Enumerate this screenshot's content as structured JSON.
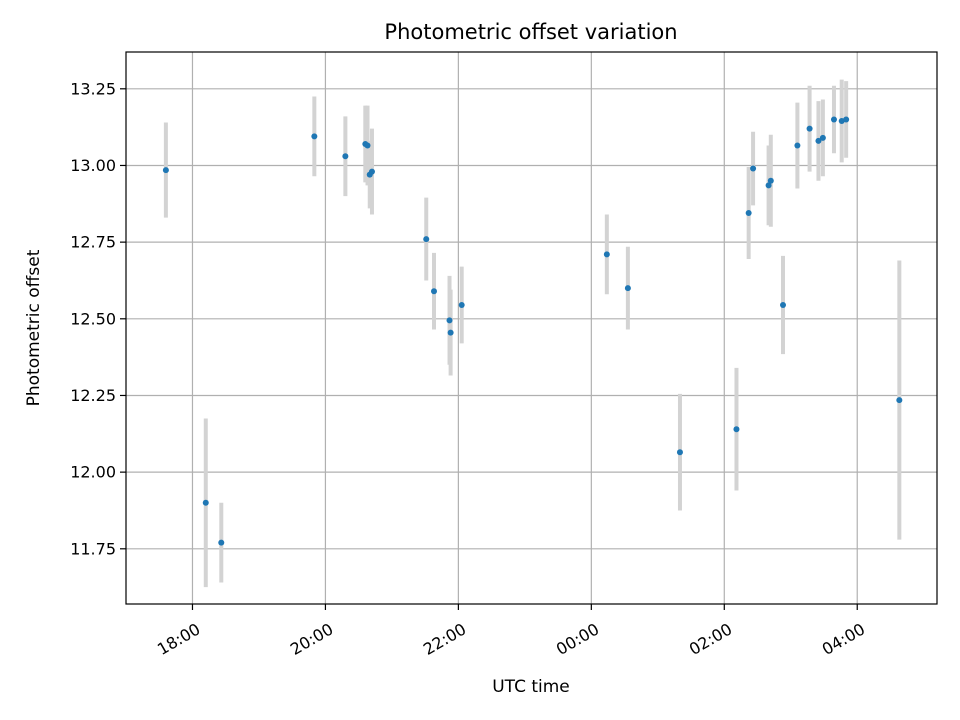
{
  "chart_data": {
    "type": "scatter",
    "title": "Photometric offset variation",
    "xlabel": "UTC time",
    "ylabel": "Photometric offset",
    "x_axis": "time",
    "xlim": [
      "17:00",
      "05:12"
    ],
    "ylim": [
      11.57,
      13.37
    ],
    "x_ticks": [
      "18:00",
      "20:00",
      "22:00",
      "00:00",
      "02:00",
      "04:00"
    ],
    "y_ticks": [
      "11.75",
      "12.00",
      "12.25",
      "12.50",
      "12.75",
      "13.00",
      "13.25"
    ],
    "grid": true,
    "colors": {
      "point": "#1f77b4",
      "errorbar": "#d3d3d3"
    },
    "points": [
      {
        "t": "17:36",
        "y": 12.985,
        "err": 0.155
      },
      {
        "t": "18:12",
        "y": 11.9,
        "err": 0.275
      },
      {
        "t": "18:26",
        "y": 11.77,
        "err": 0.13
      },
      {
        "t": "19:50",
        "y": 13.095,
        "err": 0.13
      },
      {
        "t": "20:18",
        "y": 13.03,
        "err": 0.13
      },
      {
        "t": "20:36",
        "y": 13.07,
        "err": 0.125
      },
      {
        "t": "20:38",
        "y": 13.065,
        "err": 0.13
      },
      {
        "t": "20:40",
        "y": 12.97,
        "err": 0.11
      },
      {
        "t": "20:42",
        "y": 12.98,
        "err": 0.14
      },
      {
        "t": "21:31",
        "y": 12.76,
        "err": 0.135
      },
      {
        "t": "21:38",
        "y": 12.59,
        "err": 0.125
      },
      {
        "t": "21:52",
        "y": 12.495,
        "err": 0.145
      },
      {
        "t": "21:53",
        "y": 12.455,
        "err": 0.14
      },
      {
        "t": "22:03",
        "y": 12.545,
        "err": 0.125
      },
      {
        "t": "00:14",
        "y": 12.71,
        "err": 0.13
      },
      {
        "t": "00:33",
        "y": 12.6,
        "err": 0.135
      },
      {
        "t": "01:20",
        "y": 12.065,
        "err": 0.19
      },
      {
        "t": "02:11",
        "y": 12.14,
        "err": 0.2
      },
      {
        "t": "02:22",
        "y": 12.845,
        "err": 0.15
      },
      {
        "t": "02:26",
        "y": 12.99,
        "err": 0.12
      },
      {
        "t": "02:40",
        "y": 12.935,
        "err": 0.13
      },
      {
        "t": "02:42",
        "y": 12.95,
        "err": 0.15
      },
      {
        "t": "02:53",
        "y": 12.545,
        "err": 0.16
      },
      {
        "t": "03:06",
        "y": 13.065,
        "err": 0.14
      },
      {
        "t": "03:17",
        "y": 13.12,
        "err": 0.14
      },
      {
        "t": "03:25",
        "y": 13.08,
        "err": 0.13
      },
      {
        "t": "03:29",
        "y": 13.09,
        "err": 0.125
      },
      {
        "t": "03:39",
        "y": 13.15,
        "err": 0.11
      },
      {
        "t": "03:46",
        "y": 13.145,
        "err": 0.135
      },
      {
        "t": "03:50",
        "y": 13.15,
        "err": 0.125
      },
      {
        "t": "04:38",
        "y": 12.235,
        "err": 0.455
      }
    ]
  }
}
